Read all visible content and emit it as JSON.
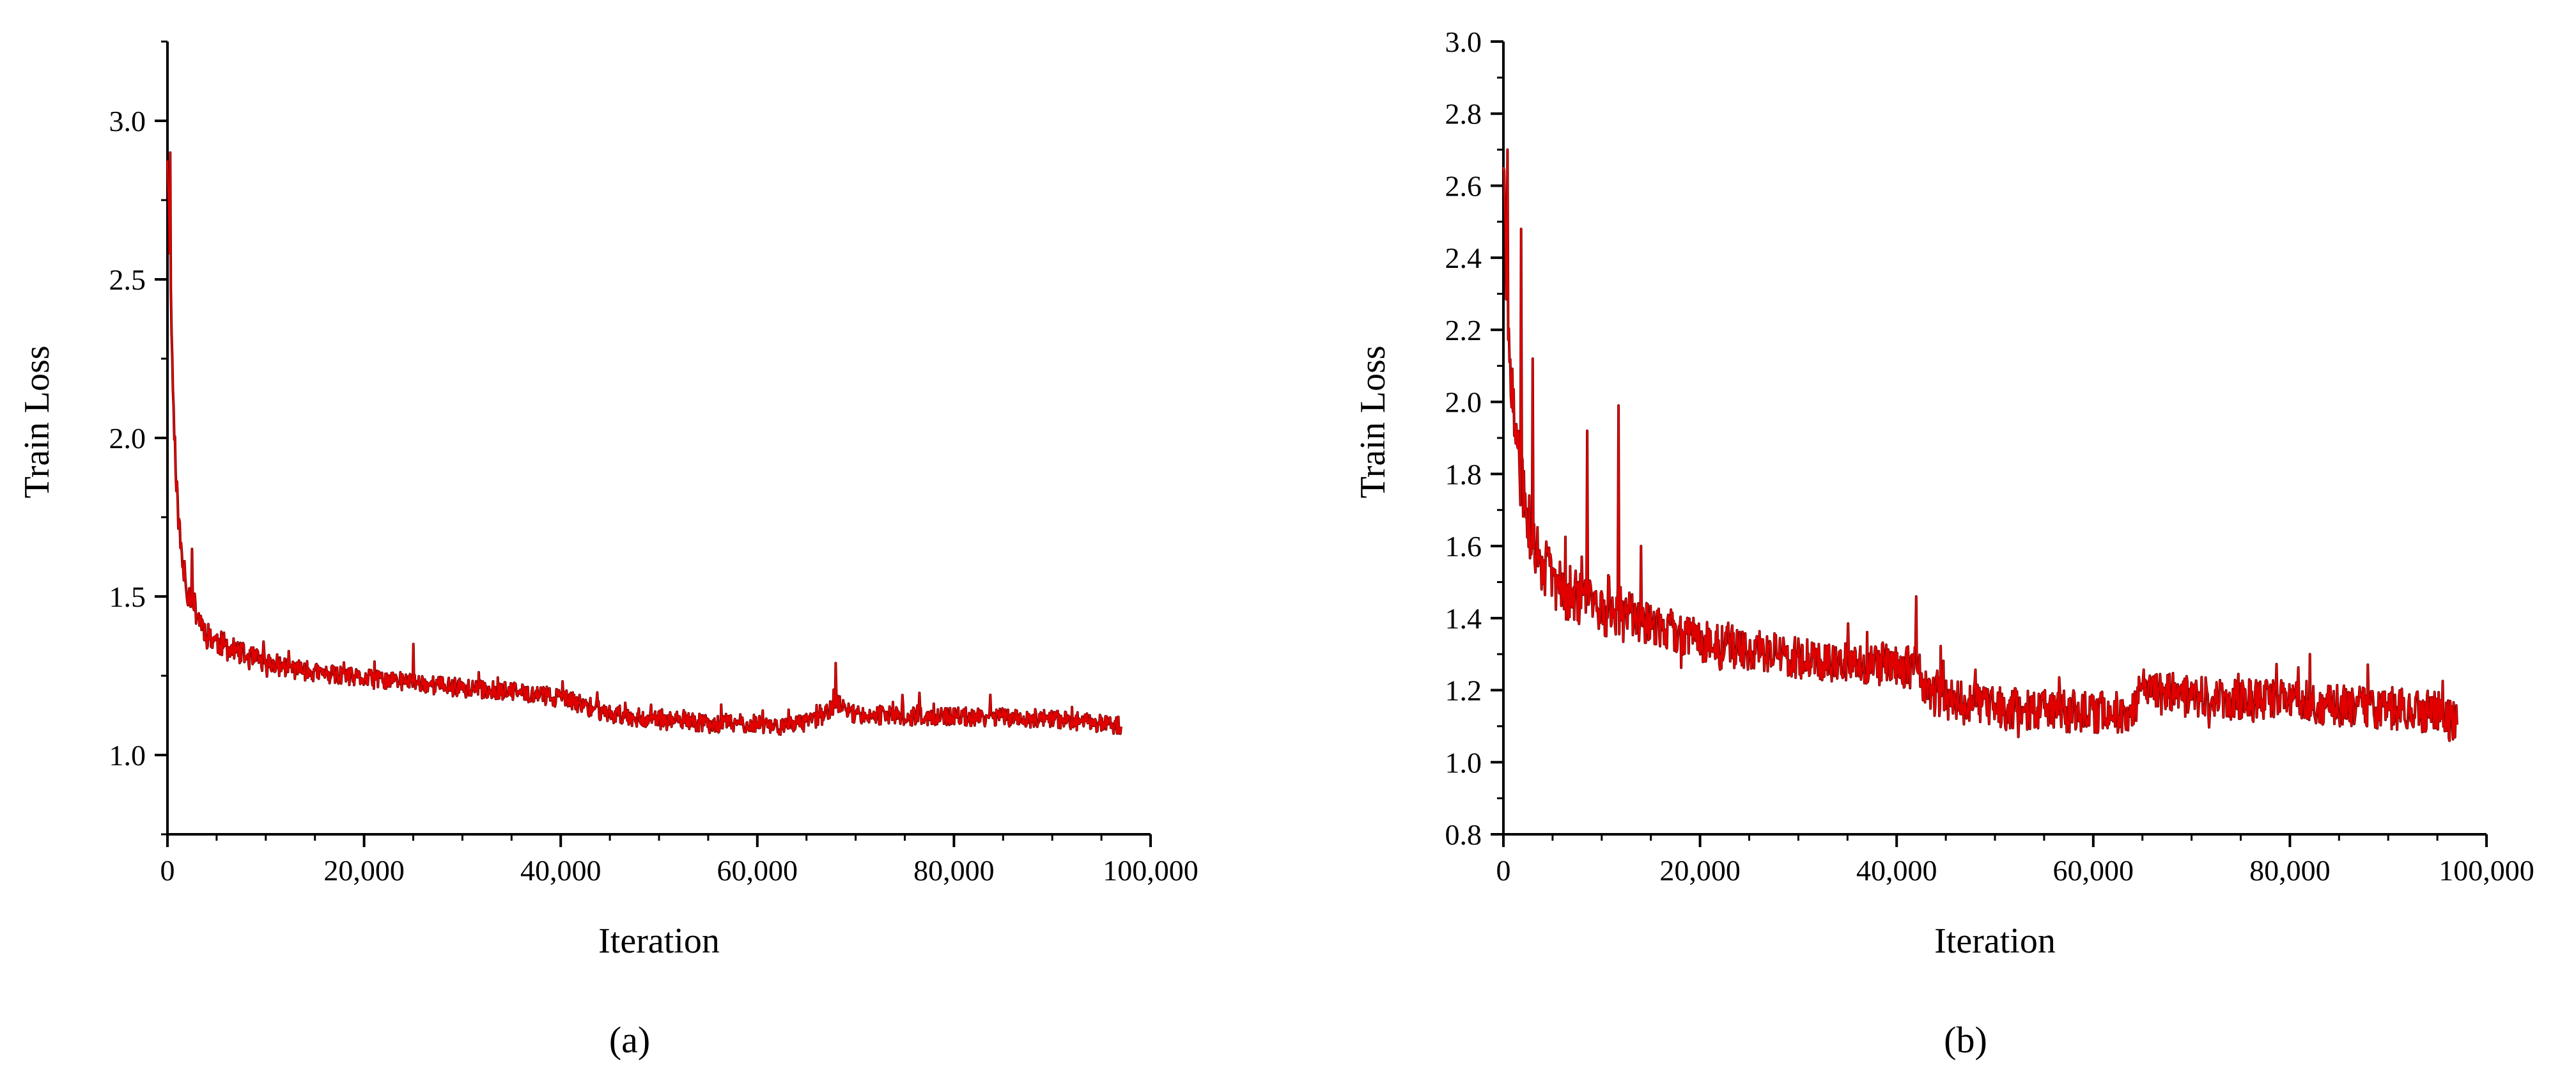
{
  "chart_data": [
    {
      "panel_label": "(a)",
      "type": "line",
      "xlabel": "Iteration",
      "ylabel": "Train Loss",
      "xlim": [
        0,
        100000
      ],
      "ylim": [
        0.75,
        3.25
      ],
      "x_ticks": [
        0,
        20000,
        40000,
        60000,
        80000,
        100000
      ],
      "x_tick_labels": [
        "0",
        "20,000",
        "40,000",
        "60,000",
        "80,000",
        "100,000"
      ],
      "y_ticks": [
        1.0,
        1.5,
        2.0,
        2.5,
        3.0
      ],
      "y_tick_labels": [
        "1.0",
        "1.5",
        "2.0",
        "2.5",
        "3.0"
      ],
      "x_minor_step": 5000,
      "y_minor_step": 0.25,
      "grid": false,
      "line_color": "#e00000",
      "line_dark_color": "#5a0000",
      "series": [
        {
          "x": [
            0,
            300,
            600,
            1000,
            1500,
            2000,
            3000,
            4000,
            6000,
            8000,
            10000,
            15000,
            20000,
            25000,
            30000,
            35000,
            38000,
            40000,
            42000,
            45000,
            50000,
            55000,
            60000,
            63000,
            65000,
            67000,
            68000,
            69000,
            70000,
            75000,
            80000,
            85000,
            90000,
            95000,
            97000
          ],
          "y": [
            2.9,
            2.5,
            2.1,
            1.8,
            1.6,
            1.52,
            1.45,
            1.38,
            1.34,
            1.31,
            1.29,
            1.26,
            1.24,
            1.23,
            1.21,
            1.2,
            1.19,
            1.18,
            1.16,
            1.13,
            1.11,
            1.1,
            1.1,
            1.09,
            1.1,
            1.13,
            1.17,
            1.14,
            1.13,
            1.12,
            1.12,
            1.12,
            1.11,
            1.1,
            1.09
          ],
          "noise": 0.03,
          "spikes": [
            {
              "x": 300,
              "y": 2.9
            },
            {
              "x": 2500,
              "y": 1.65
            },
            {
              "x": 25000,
              "y": 1.35
            },
            {
              "x": 68000,
              "y": 1.29
            }
          ]
        }
      ]
    },
    {
      "panel_label": "(b)",
      "type": "line",
      "xlabel": "Iteration",
      "ylabel": "Train Loss",
      "xlim": [
        0,
        100000
      ],
      "ylim": [
        0.8,
        3.0
      ],
      "x_ticks": [
        0,
        20000,
        40000,
        60000,
        80000,
        100000
      ],
      "x_tick_labels": [
        "0",
        "20,000",
        "40,000",
        "60,000",
        "80,000",
        "100,000"
      ],
      "y_ticks": [
        0.8,
        1.0,
        1.2,
        1.4,
        1.6,
        1.8,
        2.0,
        2.2,
        2.4,
        2.6,
        2.8,
        3.0
      ],
      "y_tick_labels": [
        "0.8",
        "1.0",
        "1.2",
        "1.4",
        "1.6",
        "1.8",
        "2.0",
        "2.2",
        "2.4",
        "2.6",
        "2.8",
        "3.0"
      ],
      "x_minor_step": 5000,
      "y_minor_step": 0.1,
      "grid": false,
      "line_color": "#e00000",
      "line_dark_color": "#5a0000",
      "series": [
        {
          "x": [
            0,
            300,
            700,
            1200,
            2000,
            3000,
            4000,
            6000,
            8000,
            10000,
            12000,
            15000,
            20000,
            25000,
            30000,
            35000,
            40000,
            42000,
            43000,
            45000,
            50000,
            55000,
            60000,
            64000,
            65000,
            70000,
            75000,
            80000,
            85000,
            90000,
            95000,
            97000
          ],
          "y": [
            2.7,
            2.3,
            2.05,
            1.9,
            1.75,
            1.6,
            1.55,
            1.48,
            1.45,
            1.42,
            1.42,
            1.38,
            1.34,
            1.31,
            1.29,
            1.28,
            1.27,
            1.26,
            1.2,
            1.17,
            1.15,
            1.14,
            1.14,
            1.14,
            1.2,
            1.18,
            1.17,
            1.17,
            1.16,
            1.15,
            1.14,
            1.1
          ],
          "noise": 0.06,
          "spikes": [
            {
              "x": 400,
              "y": 2.7
            },
            {
              "x": 1800,
              "y": 2.48
            },
            {
              "x": 3000,
              "y": 2.12
            },
            {
              "x": 8500,
              "y": 1.92
            },
            {
              "x": 11700,
              "y": 1.99
            },
            {
              "x": 14000,
              "y": 1.6
            },
            {
              "x": 42000,
              "y": 1.46
            },
            {
              "x": 82000,
              "y": 1.3
            }
          ]
        }
      ]
    }
  ]
}
